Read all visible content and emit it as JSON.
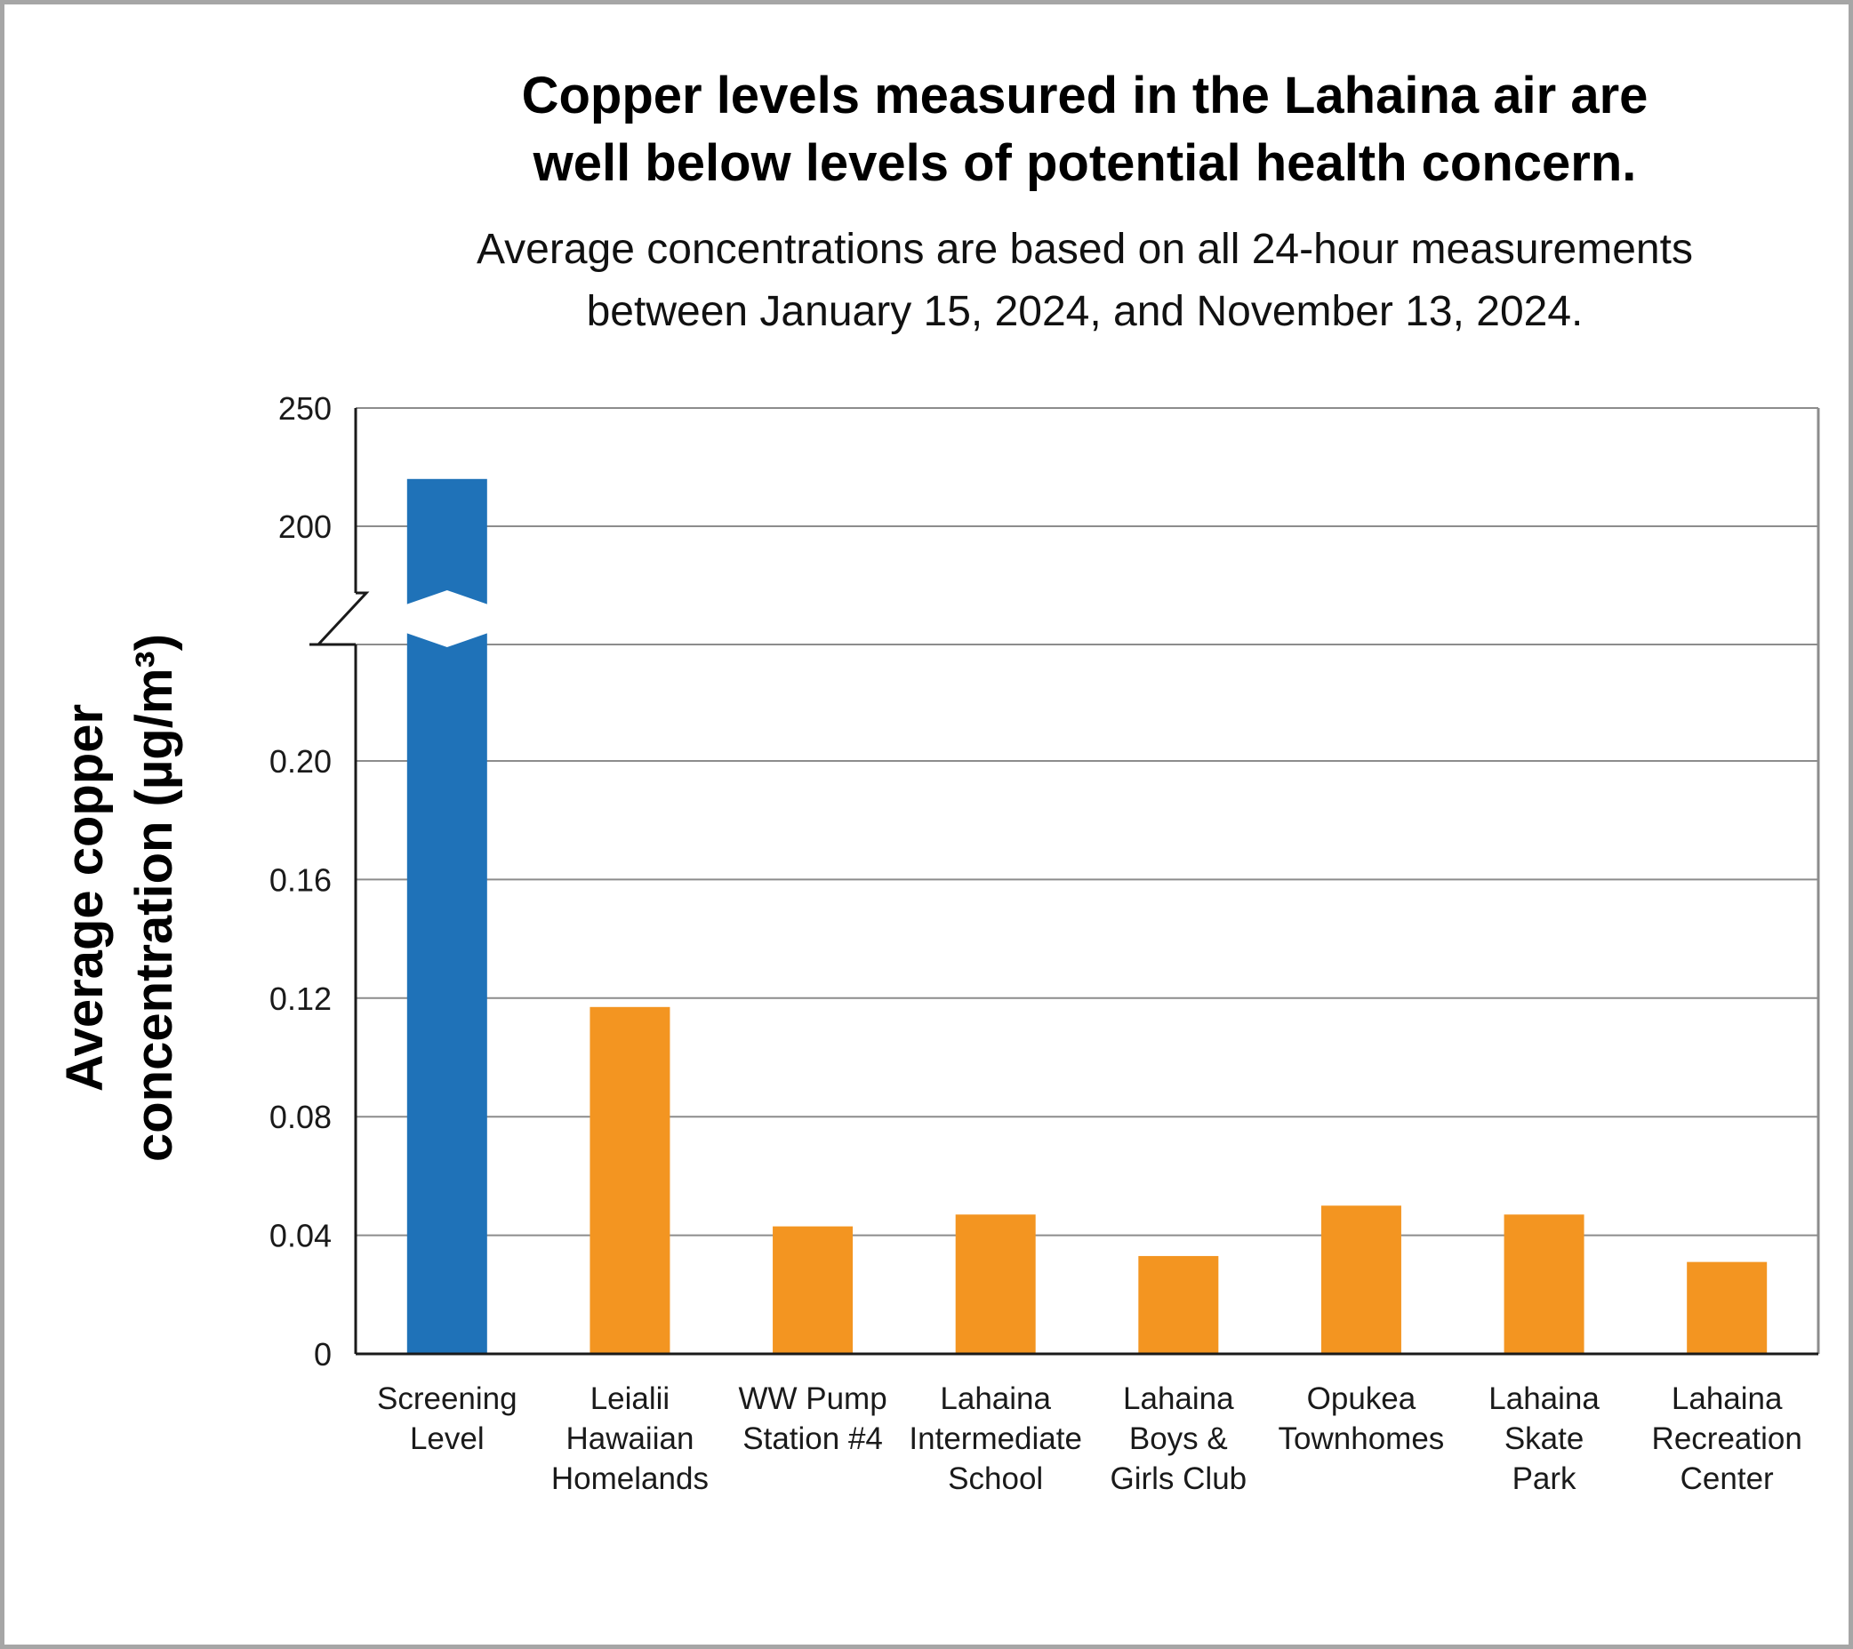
{
  "title_line1": "Copper levels measured in the Lahaina air are",
  "title_line2": "well below levels of potential health concern.",
  "subtitle_line1": "Average concentrations are based on all 24-hour measurements",
  "subtitle_line2": "between January 15, 2024, and November 13, 2024.",
  "ylabel_line1": "Average copper",
  "ylabel_line2": "concentration (µg/m³)",
  "colors": {
    "screening": "#1f72b8",
    "site": "#f39521",
    "grid": "#8c8c8c",
    "axis": "#1a1a1a"
  },
  "chart_data": {
    "type": "bar",
    "title": "Copper levels measured in the Lahaina air are well below levels of potential health concern.",
    "subtitle": "Average concentrations are based on all 24-hour measurements between January 15, 2024, and November 13, 2024.",
    "xlabel": "",
    "ylabel": "Average copper concentration (µg/m³)",
    "broken_axis": true,
    "lower_segment": {
      "ylim": [
        0,
        0.24
      ],
      "ticks": [
        "0",
        "0.04",
        "0.08",
        "0.12",
        "0.16",
        "0.20"
      ]
    },
    "upper_segment": {
      "ylim": [
        200,
        250
      ],
      "ticks": [
        "200",
        "250"
      ]
    },
    "grid": true,
    "categories": [
      [
        "Screening",
        "Level"
      ],
      [
        "Leialii",
        "Hawaiian",
        "Homelands"
      ],
      [
        "WW Pump",
        "Station #4"
      ],
      [
        "Lahaina",
        "Intermediate",
        "School"
      ],
      [
        "Lahaina",
        "Boys &",
        "Girls Club"
      ],
      [
        "Opukea",
        "Townhomes"
      ],
      [
        "Lahaina",
        "Skate",
        "Park"
      ],
      [
        "Lahaina",
        "Recreation",
        "Center"
      ]
    ],
    "values": [
      220,
      0.117,
      0.043,
      0.047,
      0.033,
      0.05,
      0.047,
      0.031
    ],
    "bar_colors": [
      "screening",
      "site",
      "site",
      "site",
      "site",
      "site",
      "site",
      "site"
    ]
  }
}
